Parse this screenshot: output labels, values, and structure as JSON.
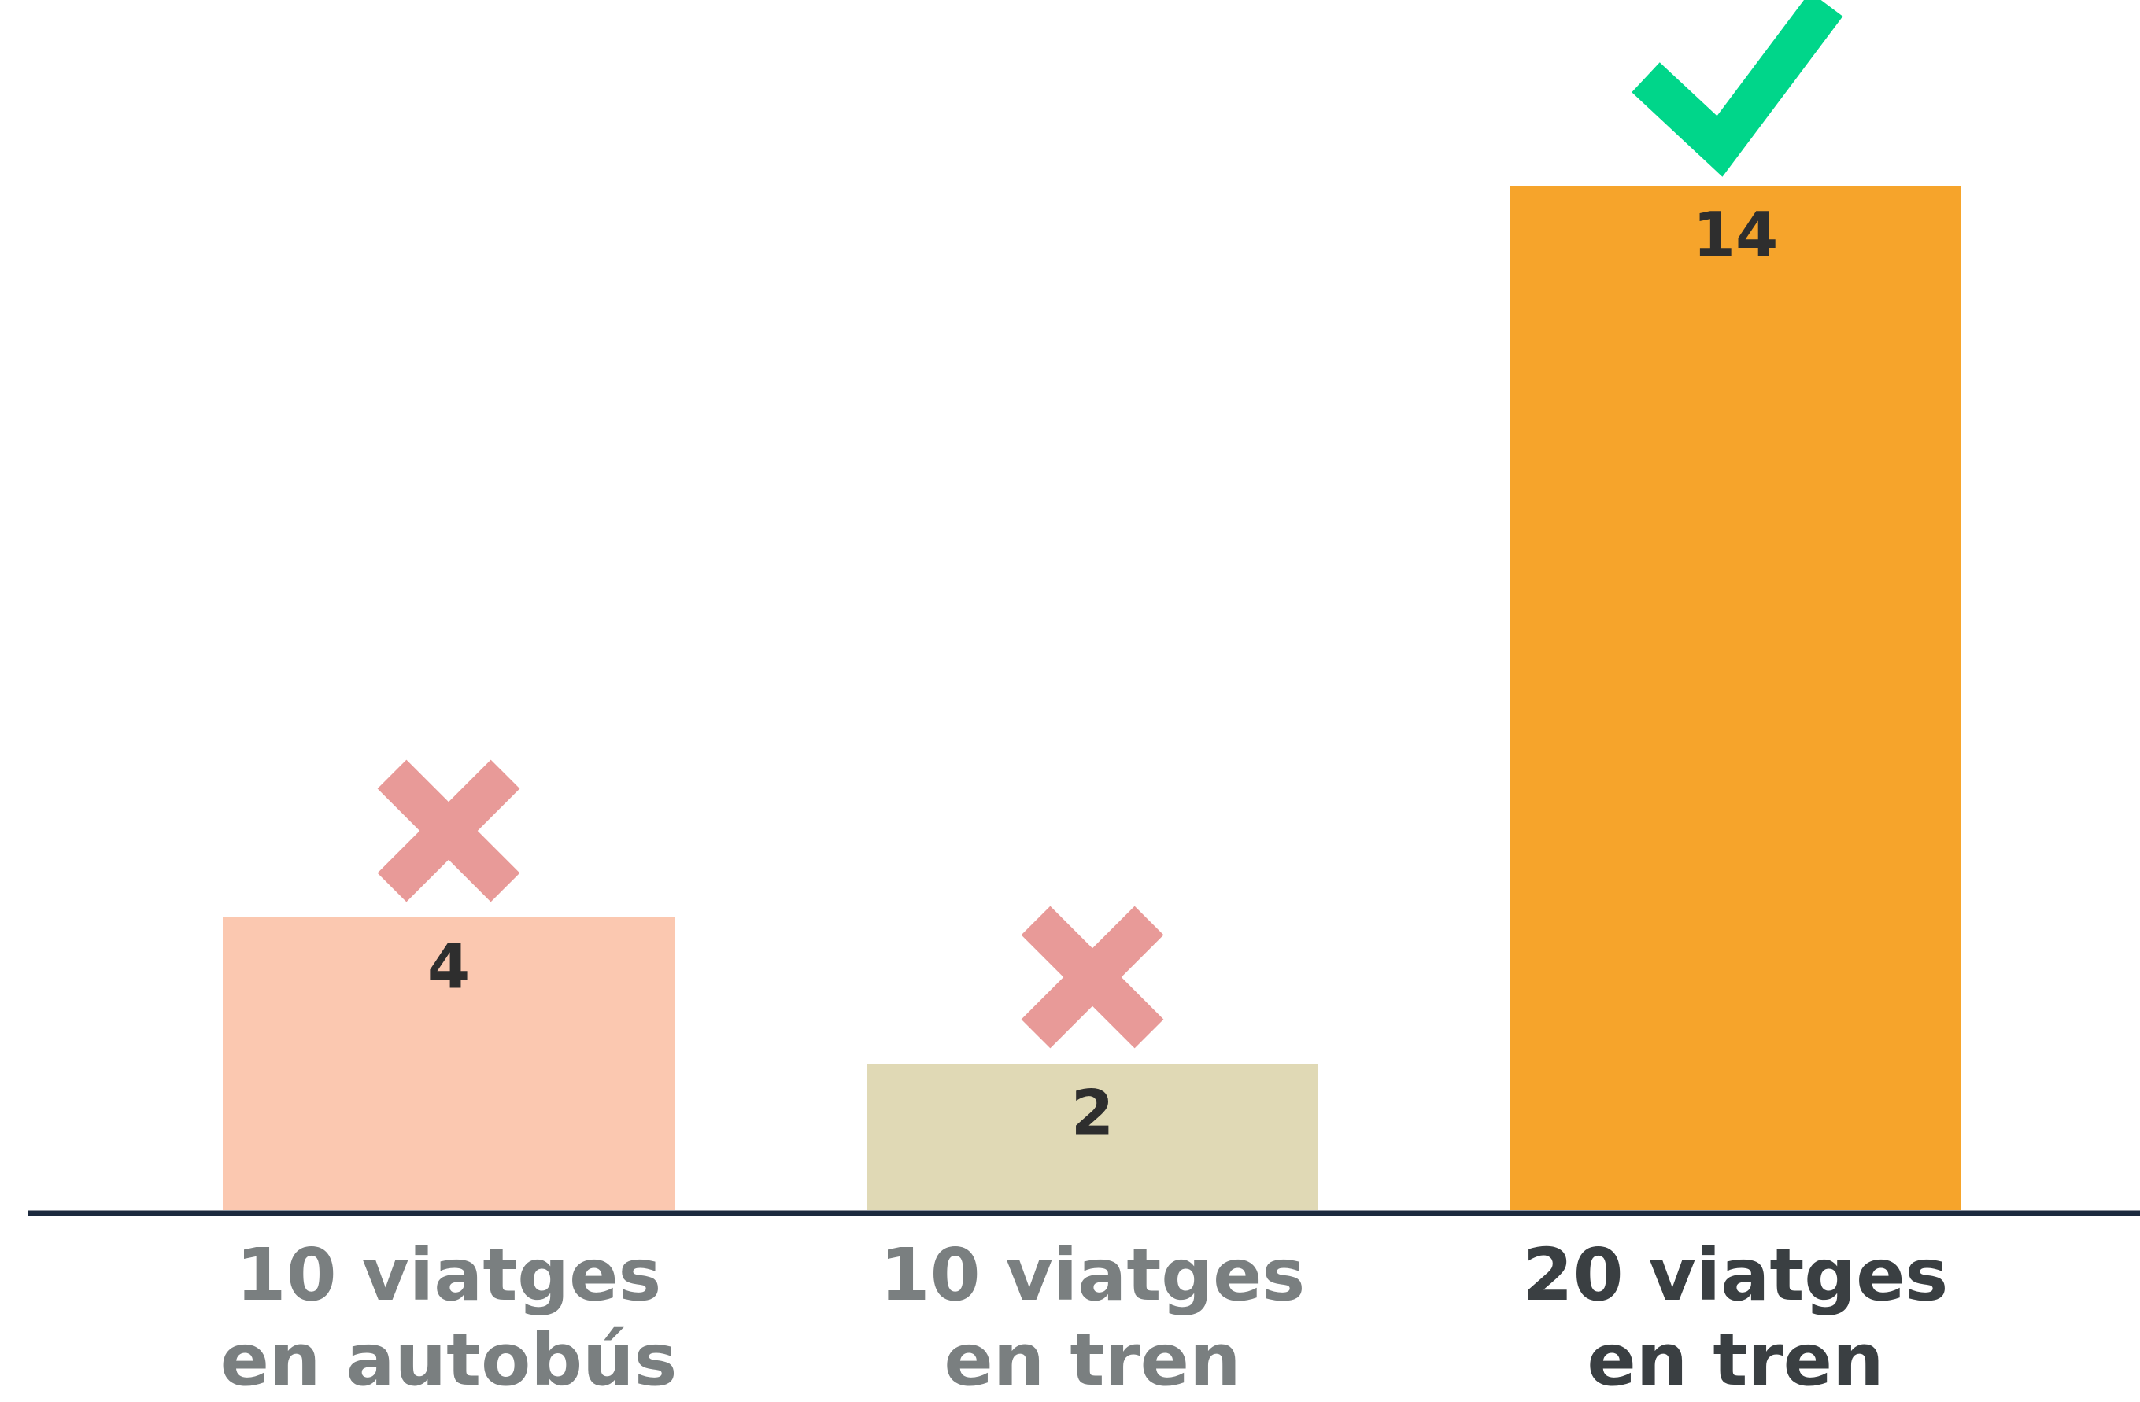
{
  "chart_data": {
    "type": "bar",
    "categories": [
      "10 viatges\nen autobús",
      "10 viatges\nen tren",
      "20 viatges\nen tren"
    ],
    "values": [
      4,
      2,
      14
    ],
    "colors": [
      "#fbc8b0",
      "#e0d9b5",
      "#f6a42b"
    ],
    "highlight": 2
  }
}
